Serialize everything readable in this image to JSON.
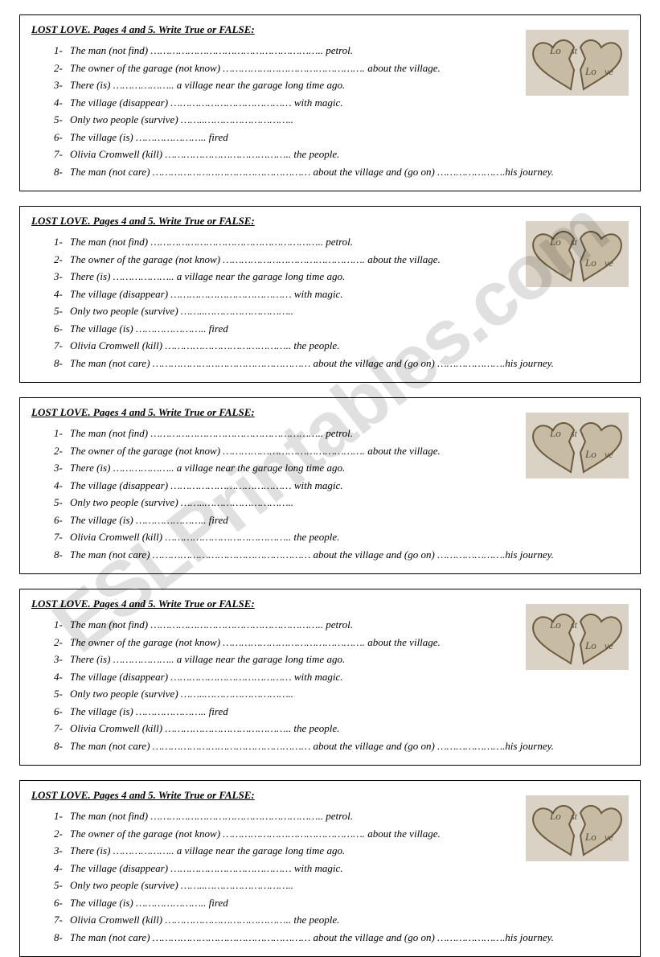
{
  "watermark_text": "ESLPrintables.com",
  "box": {
    "title": "LOST LOVE. Pages 4 and 5.  Write True or FALSE:",
    "questions": [
      {
        "num": "1-",
        "before": "The man (not find) ",
        "dots": "………………………………………………..",
        "after": " petrol."
      },
      {
        "num": "2-",
        "before": "The owner of the garage (not know) ",
        "dots": "……………………………………….",
        "after": " about the village."
      },
      {
        "num": "3-",
        "before": "There (is) ",
        "dots": "………………..",
        "after": " a village near the garage long time ago."
      },
      {
        "num": "4-",
        "before": "The village (disappear) ",
        "dots": "…………………………………",
        "after": " with magic."
      },
      {
        "num": "5-",
        "before": "Only two people (survive) ",
        "dots": "……..………………………..",
        "after": ""
      },
      {
        "num": "6-",
        "before": "The village (is) ",
        "dots": "…………………..",
        "after": " fired"
      },
      {
        "num": "7-",
        "before": "Olivia Cromwell (kill) ",
        "dots": "…………………………………..",
        "after": " the people."
      },
      {
        "num": "8-",
        "before": "The man (not care) ",
        "dots": "……………………………………………",
        "after": " about the village and (go on) ",
        "dots2": "………………….",
        "after2": "his journey."
      }
    ]
  },
  "heart": {
    "bg": "#d9d2c5",
    "heart_fill": "#c8bba3",
    "heart_stroke": "#6b5a3f",
    "labels": [
      "Lo",
      "st",
      "Lo",
      "ve"
    ],
    "label_color": "#5a4a34"
  },
  "repeat_count": 5
}
